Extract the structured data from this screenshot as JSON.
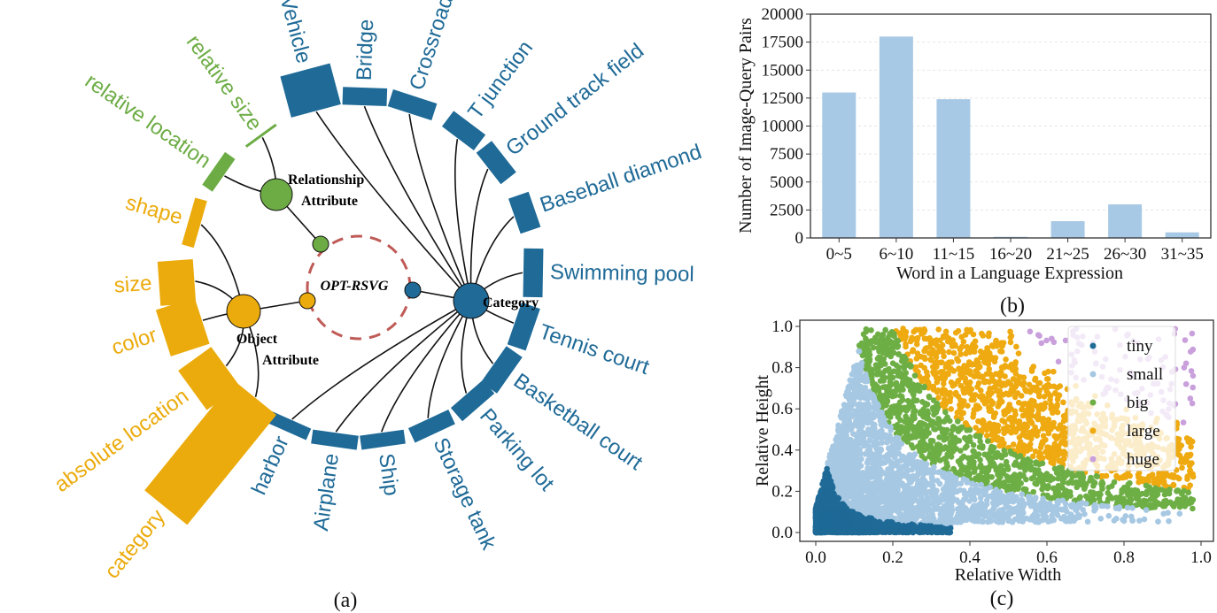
{
  "colors": {
    "category": "#1f6a97",
    "object_attribute": "#ebab0c",
    "relationship_attribute": "#6dac45",
    "dashed_circle": "#bf5a56",
    "bar": "#a8c9e5"
  },
  "panel_a": {
    "caption": "(a)",
    "center_label": "OPT-RSVG",
    "hubs": {
      "category": "Category",
      "object_attribute": [
        "Object",
        "Attribute"
      ],
      "relationship_attribute": [
        "Relationship",
        "Attribute"
      ]
    },
    "category_items": [
      {
        "label": "Vehicle",
        "weight": 2.4
      },
      {
        "label": "Bridge",
        "weight": 1.0
      },
      {
        "label": "Crossroad",
        "weight": 1.0
      },
      {
        "label": "T junction",
        "weight": 1.1
      },
      {
        "label": "Ground track field",
        "weight": 1.1
      },
      {
        "label": "Baseball diamond",
        "weight": 1.2
      },
      {
        "label": "Swimming pool",
        "weight": 1.1
      },
      {
        "label": "Tennis court",
        "weight": 1.1
      },
      {
        "label": "Basketball court",
        "weight": 1.1
      },
      {
        "label": "Parking lot",
        "weight": 1.0
      },
      {
        "label": "Storage tank",
        "weight": 0.9
      },
      {
        "label": "Ship",
        "weight": 0.8
      },
      {
        "label": "Airplane",
        "weight": 0.8
      },
      {
        "label": "harbor",
        "weight": 0.7
      }
    ],
    "object_attribute_items": [
      {
        "label": "category",
        "weight": 8.0
      },
      {
        "label": "absolute location",
        "weight": 2.3
      },
      {
        "label": "color",
        "weight": 2.3
      },
      {
        "label": "size",
        "weight": 2.0
      },
      {
        "label": "shape",
        "weight": 0.7
      }
    ],
    "relationship_attribute_items": [
      {
        "label": "relative location",
        "weight": 0.7
      },
      {
        "label": "relative size",
        "weight": 0.15
      }
    ]
  },
  "chart_data": [
    {
      "type": "bar",
      "caption": "(b)",
      "title": "",
      "xlabel": "Word in a Language Expression",
      "ylabel": "Number of Image-Query Pairs",
      "categories": [
        "0~5",
        "6~10",
        "11~15",
        "16~20",
        "21~25",
        "26~30",
        "31~35"
      ],
      "values": [
        13000,
        18000,
        12400,
        100,
        1500,
        3000,
        500
      ],
      "ylim": [
        0,
        20000
      ],
      "yticks": [
        "0",
        "2500",
        "5000",
        "7500",
        "10000",
        "12500",
        "15000",
        "17500",
        "20000"
      ],
      "grid": "horizontal dashed"
    },
    {
      "type": "scatter",
      "caption": "(c)",
      "xlabel": "Relative Width",
      "ylabel": "Relative Height",
      "xlim": [
        0,
        1
      ],
      "ylim": [
        0,
        1
      ],
      "xticks": [
        "0.0",
        "0.2",
        "0.4",
        "0.6",
        "0.8",
        "1.0"
      ],
      "yticks": [
        "0.0",
        "0.2",
        "0.4",
        "0.6",
        "0.8",
        "1.0"
      ],
      "legend_position": "top-right",
      "series": [
        {
          "name": "tiny",
          "color": "#1f6a97",
          "area_max": 0.01
        },
        {
          "name": "small",
          "color": "#a6c8e3",
          "area_max": 0.1
        },
        {
          "name": "big",
          "color": "#6dae45",
          "area_max": 0.2
        },
        {
          "name": "large",
          "color": "#eeaa10",
          "area_max": 0.5
        },
        {
          "name": "huge",
          "color": "#c9a0dc",
          "area_max": 1.0
        }
      ],
      "note_points": "points classified by relative area (width x height)"
    }
  ]
}
